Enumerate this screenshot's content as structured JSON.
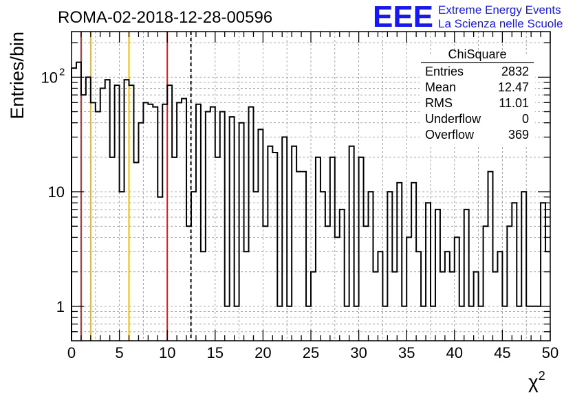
{
  "chart_data": {
    "type": "histogram",
    "title": "ROMA-02-2018-12-28-00596",
    "xlabel": "χ²",
    "ylabel": "Entries/bin",
    "xlim": [
      0,
      50
    ],
    "ylim": [
      0.5,
      250
    ],
    "y_scale": "log",
    "bin_width": 0.5,
    "x_ticks": [
      "0",
      "5",
      "10",
      "15",
      "20",
      "25",
      "30",
      "35",
      "40",
      "45",
      "50"
    ],
    "y_ticks": [
      {
        "value": 1,
        "label": "1"
      },
      {
        "value": 10,
        "label": "10"
      },
      {
        "value": 100,
        "label": "10",
        "exponent": "2"
      }
    ],
    "grid": true,
    "values": [
      120,
      135,
      70,
      100,
      60,
      50,
      80,
      95,
      20,
      85,
      10,
      95,
      85,
      18,
      40,
      60,
      58,
      55,
      9,
      58,
      85,
      20,
      60,
      65,
      5,
      10,
      58,
      3,
      50,
      55,
      20,
      50,
      1,
      45,
      1,
      40,
      3,
      55,
      10,
      35,
      5,
      25,
      22,
      1,
      30,
      1,
      25,
      15,
      15,
      1,
      2,
      20,
      10,
      5,
      20,
      4,
      7,
      1,
      25,
      1,
      20,
      5,
      10,
      2,
      3,
      1,
      10,
      2,
      12,
      1,
      4,
      12,
      3,
      1,
      8,
      1,
      7,
      2,
      3,
      2,
      4,
      1,
      7,
      1,
      2,
      1,
      5,
      15,
      2,
      3,
      1,
      5,
      8,
      1,
      10,
      1,
      1,
      1,
      8,
      3
    ],
    "vertical_lines": [
      {
        "x": 1,
        "color": "#e31a1c",
        "style": "solid"
      },
      {
        "x": 2,
        "color": "#f5b800",
        "style": "solid"
      },
      {
        "x": 6,
        "color": "#f5b800",
        "style": "solid"
      },
      {
        "x": 10,
        "color": "#e31a1c",
        "style": "solid"
      },
      {
        "x": 12.47,
        "color": "#000000",
        "style": "dashed"
      }
    ],
    "stats_box": {
      "title": "ChiSquare",
      "rows": [
        {
          "label": "Entries",
          "value": "2832"
        },
        {
          "label": "Mean",
          "value": "12.47"
        },
        {
          "label": "RMS",
          "value": "11.01"
        },
        {
          "label": "Underflow",
          "value": "0"
        },
        {
          "label": "Overflow",
          "value": "369"
        }
      ]
    }
  },
  "logo": {
    "mark": "EEE",
    "line1": "Extreme Energy Events",
    "line2": "La Scienza nelle Scuole",
    "color": "#1a1ae6"
  }
}
